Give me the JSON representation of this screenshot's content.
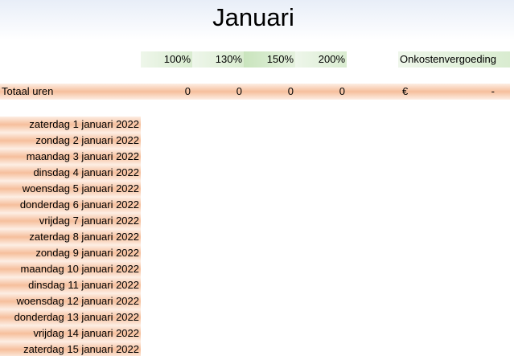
{
  "title": "Januari",
  "header": {
    "percentages": [
      "100%",
      "130%",
      "150%",
      "200%"
    ],
    "expenses": "Onkostenvergoeding"
  },
  "totals": {
    "label": "Totaal uren",
    "values": [
      0,
      0,
      0,
      0
    ],
    "currency": "€",
    "expenses": "-"
  },
  "days": [
    "zaterdag 1 januari 2022",
    "zondag 2 januari 2022",
    "maandag 3 januari 2022",
    "dinsdag 4 januari 2022",
    "woensdag 5 januari 2022",
    "donderdag 6 januari 2022",
    "vrijdag 7 januari 2022",
    "zaterdag 8 januari 2022",
    "zondag 9 januari 2022",
    "maandag 10 januari 2022",
    "dinsdag 11 januari 2022",
    "woensdag 12 januari 2022",
    "donderdag 13 januari 2022",
    "vrijdag 14 januari 2022",
    "zaterdag 15 januari 2022"
  ]
}
